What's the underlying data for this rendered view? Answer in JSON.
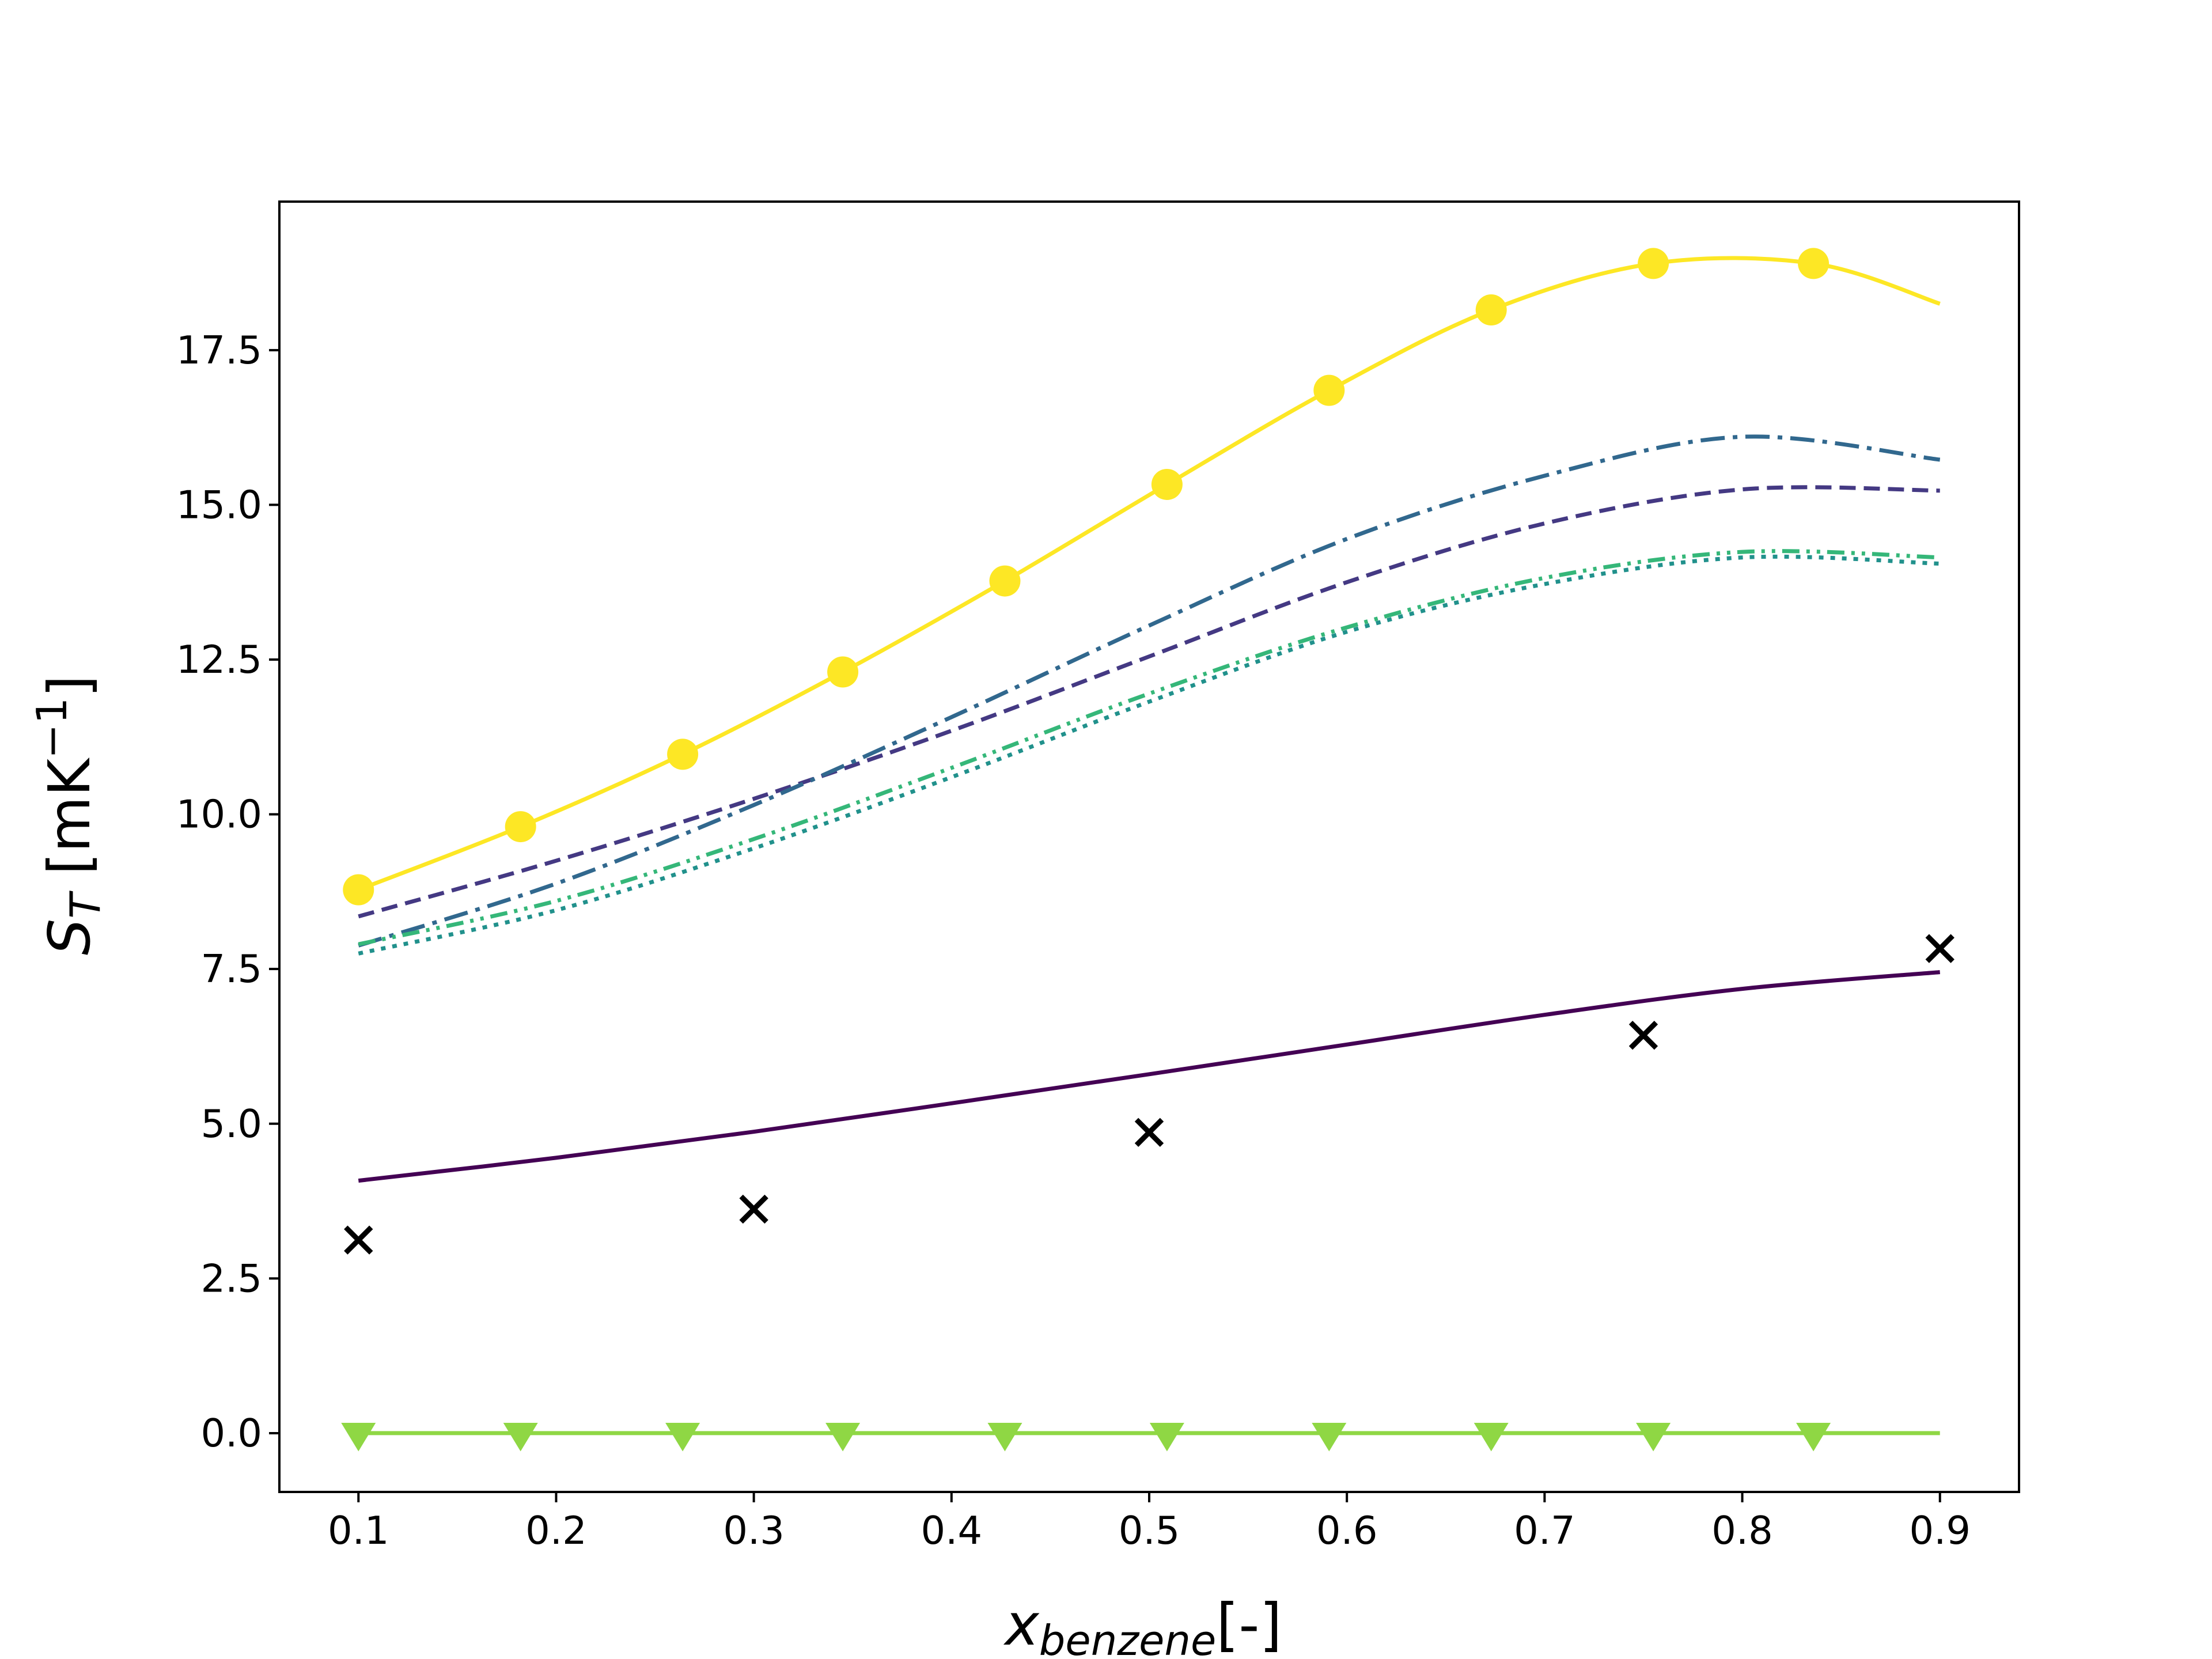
{
  "chart_data": {
    "type": "line",
    "xlabel": "x",
    "xlabel_sub": "benzene",
    "xlabel_suffix": "[-]",
    "ylabel": "S",
    "ylabel_sub": "T",
    "ylabel_units": " [mK",
    "ylabel_sup": "−1",
    "ylabel_close": "]",
    "xlim": [
      0.06,
      0.94
    ],
    "ylim": [
      -0.95,
      19.9
    ],
    "xticks": [
      0.1,
      0.2,
      0.3,
      0.4,
      0.5,
      0.6,
      0.7,
      0.8,
      0.9
    ],
    "xtick_labels": [
      "0.1",
      "0.2",
      "0.3",
      "0.4",
      "0.5",
      "0.6",
      "0.7",
      "0.8",
      "0.9"
    ],
    "yticks": [
      0.0,
      2.5,
      5.0,
      7.5,
      10.0,
      12.5,
      15.0,
      17.5
    ],
    "ytick_labels": [
      "0.0",
      "2.5",
      "5.0",
      "7.5",
      "10.0",
      "12.5",
      "15.0",
      "17.5"
    ],
    "grid": false,
    "series": [
      {
        "color": "#440154",
        "dash": "",
        "marker": "none",
        "x": [
          0.1,
          0.2,
          0.3,
          0.4,
          0.5,
          0.6,
          0.7,
          0.8,
          0.9
        ],
        "y": [
          4.08,
          4.45,
          4.87,
          5.33,
          5.8,
          6.28,
          6.76,
          7.18,
          7.45
        ]
      },
      {
        "color": "#443983",
        "dash": "28 14",
        "marker": "none",
        "x": [
          0.1,
          0.2,
          0.3,
          0.4,
          0.5,
          0.6,
          0.7,
          0.8,
          0.9
        ],
        "y": [
          8.35,
          9.25,
          10.25,
          11.35,
          12.55,
          13.75,
          14.7,
          15.25,
          15.23
        ]
      },
      {
        "color": "#31688e",
        "dash": "42 14 8 14",
        "marker": "none",
        "x": [
          0.1,
          0.2,
          0.3,
          0.4,
          0.5,
          0.6,
          0.7,
          0.8,
          0.9
        ],
        "y": [
          7.88,
          8.88,
          10.15,
          11.57,
          13.05,
          14.45,
          15.47,
          16.1,
          15.73
        ]
      },
      {
        "color": "#21918c",
        "dash": "8 12",
        "marker": "none",
        "x": [
          0.1,
          0.2,
          0.3,
          0.4,
          0.5,
          0.6,
          0.7,
          0.8,
          0.9
        ],
        "y": [
          7.75,
          8.45,
          9.45,
          10.6,
          11.82,
          12.95,
          13.72,
          14.15,
          14.05
        ]
      },
      {
        "color": "#35b779",
        "dash": "30 12 6 12 6 12",
        "marker": "none",
        "x": [
          0.1,
          0.2,
          0.3,
          0.4,
          0.5,
          0.6,
          0.7,
          0.8,
          0.9
        ],
        "y": [
          7.9,
          8.6,
          9.6,
          10.75,
          11.95,
          13.02,
          13.82,
          14.24,
          14.15
        ]
      },
      {
        "color": "#8fd744",
        "dash": "",
        "marker": "triangle",
        "x": [
          0.1,
          0.182,
          0.264,
          0.345,
          0.427,
          0.509,
          0.591,
          0.673,
          0.755,
          0.836,
          0.9
        ],
        "y": [
          0,
          0,
          0,
          0,
          0,
          0,
          0,
          0,
          0,
          0,
          0
        ],
        "marker_count": 10
      },
      {
        "color": "#fde725",
        "dash": "",
        "marker": "circle",
        "x": [
          0.1,
          0.182,
          0.264,
          0.345,
          0.427,
          0.509,
          0.591,
          0.673,
          0.755,
          0.836,
          0.9
        ],
        "y": [
          8.78,
          9.8,
          10.97,
          12.3,
          13.77,
          15.33,
          16.85,
          18.15,
          18.9,
          18.9,
          18.25
        ],
        "marker_count": 10
      }
    ],
    "scatter": {
      "color": "#000000",
      "marker": "x",
      "x": [
        0.1,
        0.3,
        0.5,
        0.75,
        0.9
      ],
      "y": [
        3.12,
        3.62,
        4.86,
        6.43,
        7.83
      ]
    }
  }
}
